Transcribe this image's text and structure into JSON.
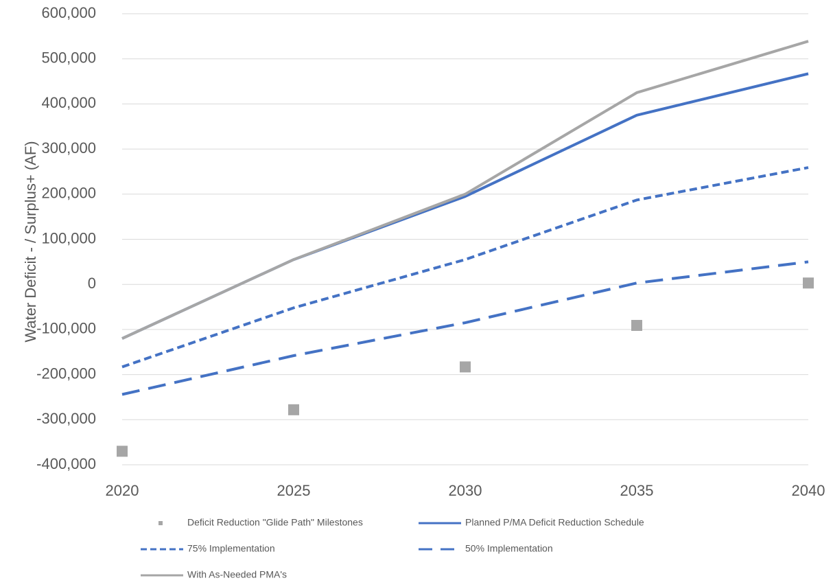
{
  "chart_data": {
    "type": "line",
    "title": "",
    "xlabel": "",
    "ylabel": "Water Deficit - / Surplus+ (AF)",
    "x": [
      2020,
      2025,
      2030,
      2035,
      2040
    ],
    "x_ticks": [
      "2020",
      "2025",
      "2030",
      "2035",
      "2040"
    ],
    "ylim": [
      -400000,
      600000
    ],
    "y_ticks": [
      "-400,000",
      "-300,000",
      "-200,000",
      "-100,000",
      "0",
      "100,000",
      "200,000",
      "300,000",
      "400,000",
      "500,000",
      "600,000"
    ],
    "grid": true,
    "legend_position": "bottom",
    "series": [
      {
        "name": "Deficit Reduction \"Glide Path\" Milestones",
        "kind": "markers",
        "color": "#a6a6a6",
        "values": [
          -370000,
          -278000,
          -183000,
          -91000,
          3000
        ]
      },
      {
        "name": "Planned P/MA Deficit Reduction Schedule",
        "kind": "solid",
        "color": "#4472c4",
        "values": [
          -120000,
          55000,
          195000,
          375000,
          467000
        ]
      },
      {
        "name": "75% Implementation",
        "kind": "short-dash",
        "color": "#4472c4",
        "values": [
          -183000,
          -52000,
          55000,
          187000,
          259000
        ]
      },
      {
        "name": "50% Implementation",
        "kind": "long-dash",
        "color": "#4472c4",
        "values": [
          -244000,
          -158000,
          -85000,
          3000,
          50000
        ]
      },
      {
        "name": "With As-Needed PMA's",
        "kind": "solid",
        "color": "#a6a6a6",
        "values": [
          -120000,
          55000,
          200000,
          425000,
          539000
        ]
      }
    ]
  }
}
